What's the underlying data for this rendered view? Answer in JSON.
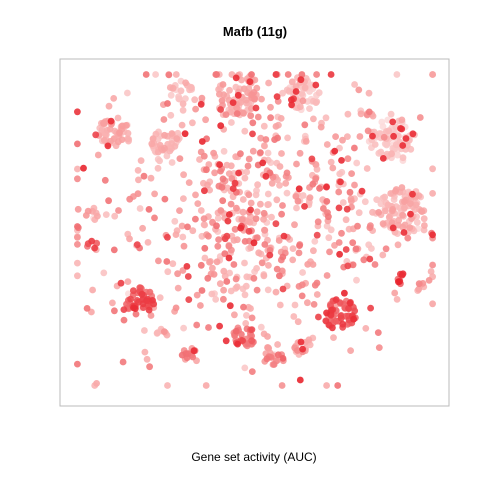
{
  "chart_data": {
    "type": "scatter",
    "title": "Mafb (11g)",
    "xlabel": "Gene set activity (AUC)",
    "ylabel": "",
    "axes_shown": false,
    "grid": false,
    "legend": "none",
    "color_scale": {
      "quantity": "AUC",
      "low_color": "#fde4e4",
      "mid_color": "#f7a0a0",
      "high_color": "#e8202a"
    },
    "clusters": [
      {
        "x": 0.12,
        "y": 0.8,
        "r": 0.045,
        "n": 50,
        "auc": 0.4
      },
      {
        "x": 0.26,
        "y": 0.77,
        "r": 0.04,
        "n": 40,
        "auc": 0.35
      },
      {
        "x": 0.3,
        "y": 0.93,
        "r": 0.03,
        "n": 18,
        "auc": 0.3
      },
      {
        "x": 0.46,
        "y": 0.92,
        "r": 0.06,
        "n": 70,
        "auc": 0.4
      },
      {
        "x": 0.63,
        "y": 0.92,
        "r": 0.045,
        "n": 50,
        "auc": 0.25
      },
      {
        "x": 0.87,
        "y": 0.77,
        "r": 0.065,
        "n": 80,
        "auc": 0.2
      },
      {
        "x": 0.9,
        "y": 0.56,
        "r": 0.065,
        "n": 85,
        "auc": 0.35
      },
      {
        "x": 0.19,
        "y": 0.28,
        "r": 0.04,
        "n": 45,
        "auc": 0.75
      },
      {
        "x": 0.73,
        "y": 0.24,
        "r": 0.045,
        "n": 50,
        "auc": 0.8
      },
      {
        "x": 0.47,
        "y": 0.17,
        "r": 0.03,
        "n": 25,
        "auc": 0.7
      },
      {
        "x": 0.55,
        "y": 0.11,
        "r": 0.03,
        "n": 20,
        "auc": 0.6
      },
      {
        "x": 0.32,
        "y": 0.12,
        "r": 0.02,
        "n": 12,
        "auc": 0.55
      },
      {
        "x": 0.63,
        "y": 0.14,
        "r": 0.025,
        "n": 15,
        "auc": 0.45
      },
      {
        "x": 0.47,
        "y": 0.52,
        "r": 0.02,
        "n": 12,
        "auc": 0.4
      },
      {
        "x": 0.06,
        "y": 0.55,
        "r": 0.018,
        "n": 8,
        "auc": 0.45
      },
      {
        "x": 0.06,
        "y": 0.45,
        "r": 0.015,
        "n": 6,
        "auc": 0.75
      },
      {
        "x": 0.9,
        "y": 0.35,
        "r": 0.018,
        "n": 8,
        "auc": 0.85
      },
      {
        "x": 0.95,
        "y": 0.32,
        "r": 0.015,
        "n": 6,
        "auc": 0.45
      },
      {
        "x": 0.81,
        "y": 0.86,
        "r": 0.012,
        "n": 5,
        "auc": 0.55
      },
      {
        "x": 0.25,
        "y": 0.18,
        "r": 0.015,
        "n": 6,
        "auc": 0.45
      }
    ],
    "background_cells": {
      "x": 0.52,
      "y": 0.55,
      "sx": 0.22,
      "sy": 0.22,
      "n": 650,
      "auc_mean": 0.45,
      "auc_spread": 0.25,
      "hot_fraction": 0.1
    }
  }
}
